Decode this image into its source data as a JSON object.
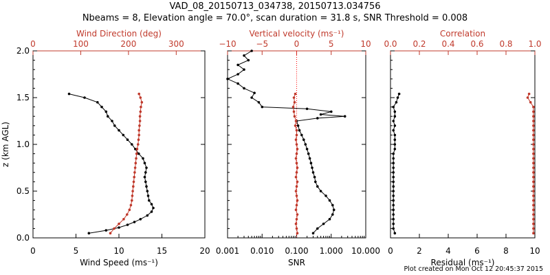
{
  "title_line1": "VAD_08_20150713_034738, 20150713.034756",
  "title_line2": "Nbeams = 8, Elevation angle = 70.0°, scan duration = 31.8 s, SNR Threshold = 0.008",
  "footer": "Plot created on Mon Oct 12 20:45:37 2015",
  "colors": {
    "red": "#c0392b",
    "black": "#000000",
    "accent": "#ff0000"
  },
  "chart_data": [
    {
      "type": "line",
      "ylabel": "z (km AGL)",
      "ylim": [
        0,
        2
      ],
      "yticks": [
        "0.0",
        "0.5",
        "1.0",
        "1.5",
        "2.0"
      ],
      "bottom_axis": {
        "label": "Wind Speed (ms⁻¹)",
        "range": [
          0,
          20
        ],
        "ticks": [
          "0",
          "5",
          "10",
          "15",
          "20"
        ]
      },
      "top_axis": {
        "label": "Wind Direction (deg)",
        "range": [
          0,
          360
        ],
        "ticks": [
          "0",
          "100",
          "200",
          "300"
        ]
      },
      "series": [
        {
          "axis": "bottom",
          "color": "black",
          "z": [
            0.05,
            0.08,
            0.11,
            0.14,
            0.17,
            0.2,
            0.24,
            0.28,
            0.32,
            0.36,
            0.4,
            0.45,
            0.5,
            0.55,
            0.6,
            0.65,
            0.7,
            0.75,
            0.8,
            0.85,
            0.9,
            0.95,
            1.0,
            1.05,
            1.1,
            1.15,
            1.2,
            1.25,
            1.3,
            1.35,
            1.4,
            1.45,
            1.5,
            1.54
          ],
          "values": [
            6.5,
            8.5,
            10.0,
            11.0,
            11.8,
            12.5,
            13.3,
            13.8,
            14.0,
            13.8,
            13.5,
            13.4,
            13.3,
            13.2,
            13.1,
            13.0,
            13.1,
            13.2,
            13.0,
            12.8,
            12.3,
            11.9,
            11.5,
            11.0,
            10.5,
            10.0,
            9.5,
            9.2,
            8.7,
            8.5,
            8.0,
            7.5,
            6.0,
            4.2
          ]
        },
        {
          "axis": "top",
          "color": "red",
          "z": [
            0.05,
            0.1,
            0.15,
            0.2,
            0.25,
            0.3,
            0.35,
            0.4,
            0.45,
            0.5,
            0.55,
            0.6,
            0.65,
            0.7,
            0.75,
            0.8,
            0.85,
            0.9,
            0.95,
            1.0,
            1.05,
            1.1,
            1.15,
            1.2,
            1.25,
            1.3,
            1.35,
            1.4,
            1.45,
            1.5,
            1.54
          ],
          "values": [
            162,
            170,
            180,
            190,
            197,
            202,
            205,
            207,
            208,
            209,
            210,
            211,
            212,
            213,
            214,
            215,
            216,
            217,
            218,
            220,
            221,
            222,
            222,
            223,
            224,
            224,
            225,
            226,
            228,
            225,
            222
          ]
        }
      ]
    },
    {
      "type": "line",
      "ylim": [
        0,
        2
      ],
      "bottom_axis": {
        "label": "SNR",
        "scale": "log",
        "range": [
          0.001,
          10
        ],
        "ticks": [
          "0.001",
          "0.010",
          "0.100",
          "1.000",
          "10.000"
        ]
      },
      "top_axis": {
        "label": "Vertical velocity (ms⁻¹)",
        "range": [
          -10,
          10
        ],
        "ticks": [
          "−10",
          "−5",
          "0",
          "5",
          "10"
        ]
      },
      "series": [
        {
          "axis": "bottom",
          "color": "black",
          "z": [
            0.05,
            0.1,
            0.15,
            0.2,
            0.25,
            0.3,
            0.35,
            0.4,
            0.45,
            0.5,
            0.55,
            0.6,
            0.65,
            0.7,
            0.75,
            0.8,
            0.85,
            0.9,
            0.95,
            1.0,
            1.05,
            1.1,
            1.15,
            1.2,
            1.25,
            1.28,
            1.3,
            1.32,
            1.35,
            1.38,
            1.4,
            1.45,
            1.5,
            1.55,
            1.6,
            1.65,
            1.7,
            1.75,
            1.8,
            1.85,
            1.9,
            1.95,
            2.0
          ],
          "values": [
            0.3,
            0.4,
            0.6,
            0.9,
            1.1,
            1.2,
            1.1,
            0.9,
            0.7,
            0.5,
            0.4,
            0.35,
            0.33,
            0.3,
            0.28,
            0.26,
            0.24,
            0.22,
            0.2,
            0.18,
            0.16,
            0.14,
            0.12,
            0.11,
            0.1,
            0.4,
            2.5,
            0.5,
            1.0,
            0.2,
            0.01,
            0.008,
            0.005,
            0.006,
            0.003,
            0.002,
            0.001,
            0.002,
            0.003,
            0.002,
            0.004,
            0.003,
            0.005
          ]
        },
        {
          "axis": "top",
          "color": "red",
          "z": [
            0.05,
            0.1,
            0.15,
            0.2,
            0.25,
            0.3,
            0.35,
            0.4,
            0.45,
            0.5,
            0.55,
            0.6,
            0.65,
            0.7,
            0.75,
            0.8,
            0.85,
            0.9,
            0.95,
            1.0,
            1.05,
            1.1,
            1.15,
            1.2,
            1.25,
            1.3,
            1.35,
            1.4,
            1.45,
            1.5,
            1.54
          ],
          "values": [
            0.1,
            0.0,
            -0.1,
            0.0,
            0.1,
            -0.1,
            0.0,
            0.1,
            0.0,
            -0.1,
            0.0,
            0.1,
            -0.1,
            0.0,
            0.1,
            0.0,
            -0.1,
            0.0,
            0.1,
            0.0,
            -0.1,
            0.0,
            0.0,
            -0.2,
            -0.1,
            -0.3,
            -0.4,
            -0.5,
            -0.3,
            -0.4,
            -0.2
          ]
        }
      ]
    },
    {
      "type": "line",
      "ylim": [
        0,
        2
      ],
      "bottom_axis": {
        "label": "Residual (ms⁻¹)",
        "range": [
          0,
          10
        ],
        "ticks": [
          "0",
          "2",
          "4",
          "6",
          "8",
          "10"
        ]
      },
      "top_axis": {
        "label": "Correlation",
        "range": [
          0,
          1
        ],
        "ticks": [
          "0.0",
          "0.2",
          "0.4",
          "0.6",
          "0.8",
          "1.0"
        ]
      },
      "series": [
        {
          "axis": "bottom",
          "color": "black",
          "z": [
            0.05,
            0.1,
            0.15,
            0.2,
            0.25,
            0.3,
            0.35,
            0.4,
            0.45,
            0.5,
            0.55,
            0.6,
            0.65,
            0.7,
            0.75,
            0.8,
            0.85,
            0.9,
            0.95,
            1.0,
            1.05,
            1.1,
            1.15,
            1.2,
            1.25,
            1.3,
            1.35,
            1.4,
            1.45,
            1.5,
            1.54
          ],
          "values": [
            0.3,
            0.2,
            0.2,
            0.2,
            0.2,
            0.2,
            0.2,
            0.2,
            0.2,
            0.2,
            0.2,
            0.2,
            0.2,
            0.2,
            0.2,
            0.2,
            0.2,
            0.2,
            0.3,
            0.3,
            0.3,
            0.3,
            0.2,
            0.3,
            0.2,
            0.3,
            0.3,
            0.2,
            0.4,
            0.5,
            0.6
          ]
        },
        {
          "axis": "top",
          "color": "red",
          "z": [
            0.05,
            0.1,
            0.15,
            0.2,
            0.25,
            0.3,
            0.35,
            0.4,
            0.45,
            0.5,
            0.55,
            0.6,
            0.65,
            0.7,
            0.75,
            0.8,
            0.85,
            0.9,
            0.95,
            1.0,
            1.05,
            1.1,
            1.15,
            1.2,
            1.25,
            1.3,
            1.35,
            1.4,
            1.45,
            1.5,
            1.54
          ],
          "values": [
            0.99,
            0.99,
            0.99,
            0.99,
            0.99,
            0.99,
            0.99,
            0.99,
            0.99,
            0.99,
            0.99,
            0.99,
            0.99,
            0.99,
            0.99,
            0.99,
            0.99,
            0.99,
            0.99,
            0.99,
            0.99,
            0.99,
            0.99,
            0.99,
            0.99,
            0.99,
            0.99,
            0.99,
            0.97,
            0.95,
            0.96
          ]
        }
      ]
    }
  ]
}
